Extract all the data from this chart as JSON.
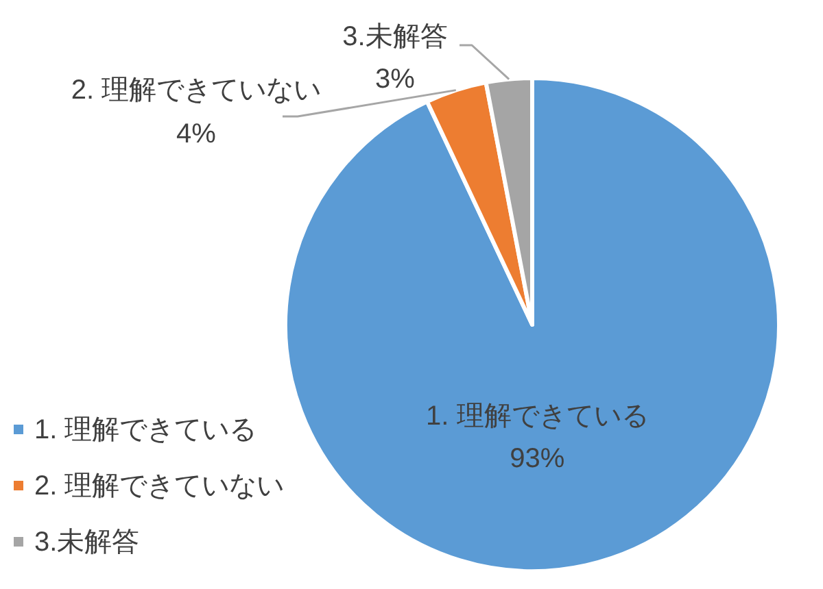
{
  "chart_data": {
    "type": "pie",
    "categories": [
      "1. 理解できている",
      "2. 理解できていない",
      "3.未解答"
    ],
    "values": [
      93,
      4,
      3
    ],
    "colors": [
      "#5b9bd5",
      "#ed7d31",
      "#a5a5a5"
    ],
    "value_labels": [
      "93%",
      "4%",
      "3%"
    ],
    "legend": "left"
  }
}
